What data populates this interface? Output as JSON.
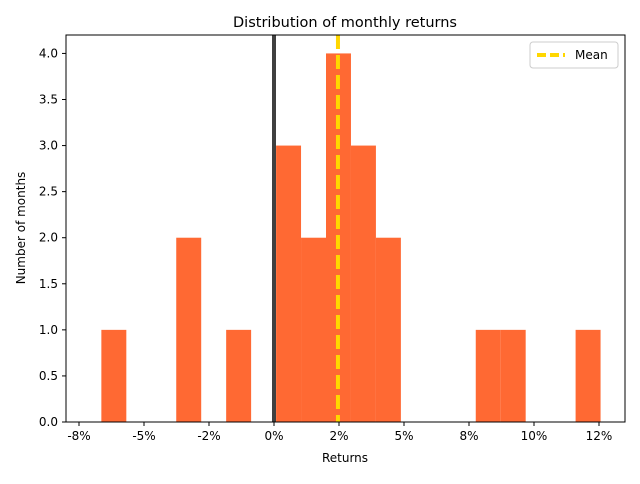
{
  "chart_data": {
    "type": "bar",
    "title": "Distribution of monthly returns",
    "xlabel": "Returns",
    "ylabel": "Number of months",
    "xlim": [
      -0.08,
      0.135
    ],
    "ylim": [
      0,
      4.2
    ],
    "x_ticks": [
      {
        "value": -0.075,
        "label": "-8%"
      },
      {
        "value": -0.05,
        "label": "-5%"
      },
      {
        "value": -0.025,
        "label": "-2%"
      },
      {
        "value": 0.0,
        "label": "0%"
      },
      {
        "value": 0.025,
        "label": "2%"
      },
      {
        "value": 0.05,
        "label": "5%"
      },
      {
        "value": 0.075,
        "label": "8%"
      },
      {
        "value": 0.1,
        "label": "10%"
      },
      {
        "value": 0.125,
        "label": "12%"
      }
    ],
    "y_ticks": [
      {
        "value": 0.0,
        "label": "0.0"
      },
      {
        "value": 0.5,
        "label": "0.5"
      },
      {
        "value": 1.0,
        "label": "1.0"
      },
      {
        "value": 1.5,
        "label": "1.5"
      },
      {
        "value": 2.0,
        "label": "2.0"
      },
      {
        "value": 2.5,
        "label": "2.5"
      },
      {
        "value": 3.0,
        "label": "3.0"
      },
      {
        "value": 3.5,
        "label": "3.5"
      },
      {
        "value": 4.0,
        "label": "4.0"
      }
    ],
    "bins": [
      {
        "start": -0.0664,
        "end": -0.0568,
        "count": 1
      },
      {
        "start": -0.0376,
        "end": -0.028,
        "count": 2
      },
      {
        "start": -0.0184,
        "end": -0.0088,
        "count": 1
      },
      {
        "start": 0.0008,
        "end": 0.0104,
        "count": 3
      },
      {
        "start": 0.0104,
        "end": 0.02,
        "count": 2
      },
      {
        "start": 0.02,
        "end": 0.0296,
        "count": 4
      },
      {
        "start": 0.0296,
        "end": 0.0392,
        "count": 3
      },
      {
        "start": 0.0392,
        "end": 0.0488,
        "count": 2
      },
      {
        "start": 0.0776,
        "end": 0.0872,
        "count": 1
      },
      {
        "start": 0.0872,
        "end": 0.0968,
        "count": 1
      },
      {
        "start": 0.116,
        "end": 0.1256,
        "count": 1
      }
    ],
    "bar_color": "#ff6933",
    "zero_line": {
      "value": 0.0,
      "color": "#404040"
    },
    "mean_line": {
      "value": 0.0246,
      "color": "#ffd700",
      "legend_label": "Mean"
    },
    "legend": {
      "position": "top-right"
    },
    "grid": false
  }
}
